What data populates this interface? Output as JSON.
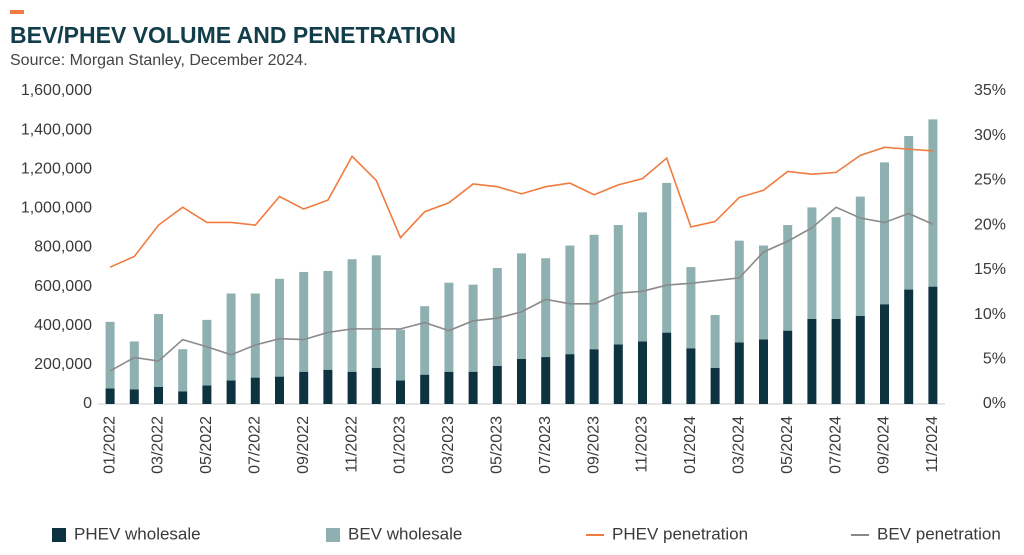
{
  "chart_data": {
    "type": "bar",
    "title": "BEV/PHEV VOLUME AND PENETRATION",
    "subtitle": "Source: Morgan Stanley, December 2024.",
    "categories": [
      "01/2022",
      null,
      "03/2022",
      null,
      "05/2022",
      null,
      "07/2022",
      null,
      "09/2022",
      null,
      "11/2022",
      null,
      "01/2023",
      null,
      "03/2023",
      null,
      "05/2023",
      null,
      "07/2023",
      null,
      "09/2023",
      null,
      "11/2023",
      null,
      "01/2024",
      null,
      "03/2024",
      null,
      "05/2024",
      null,
      "07/2024",
      null,
      "09/2024",
      null,
      "11/2024"
    ],
    "series": [
      {
        "name": "PHEV wholesale",
        "color": "#0d3340",
        "values": [
          80000,
          75000,
          88000,
          65000,
          95000,
          120000,
          135000,
          140000,
          165000,
          175000,
          165000,
          185000,
          120000,
          150000,
          165000,
          165000,
          195000,
          230000,
          240000,
          255000,
          280000,
          305000,
          320000,
          365000,
          285000,
          185000,
          315000,
          330000,
          375000,
          435000,
          435000,
          450000,
          510000,
          585000,
          600000
        ]
      },
      {
        "name": "BEV wholesale",
        "color": "#8fb0b0",
        "values": [
          340000,
          245000,
          372000,
          215000,
          335000,
          445000,
          430000,
          500000,
          510000,
          505000,
          575000,
          575000,
          260000,
          350000,
          455000,
          445000,
          500000,
          540000,
          505000,
          555000,
          585000,
          610000,
          660000,
          765000,
          415000,
          270000,
          520000,
          480000,
          540000,
          570000,
          520000,
          610000,
          725000,
          785000,
          855000
        ]
      },
      {
        "name": "PHEV penetration",
        "color": "#f07b3f",
        "type": "line",
        "axis": "y2",
        "values": [
          15.3,
          16.5,
          20,
          22,
          20.3,
          20.3,
          20,
          23.2,
          21.8,
          22.8,
          27.7,
          25,
          18.6,
          21.5,
          22.5,
          24.6,
          24.3,
          23.5,
          24.3,
          24.7,
          23.4,
          24.5,
          25.2,
          27.5,
          19.8,
          20.4,
          23.1,
          23.9,
          26,
          25.7,
          25.9,
          27.8,
          28.7,
          28.5,
          28.3
        ]
      },
      {
        "name": "BEV penetration",
        "color": "#8a8a8a",
        "type": "line",
        "axis": "y2",
        "values": [
          3.7,
          5.2,
          4.8,
          7.2,
          6.4,
          5.5,
          6.6,
          7.3,
          7.2,
          8,
          8.4,
          8.4,
          8.4,
          9.1,
          8.2,
          9.3,
          9.6,
          10.3,
          11.7,
          11.2,
          11.2,
          12.4,
          12.6,
          13.3,
          13.5,
          13.8,
          14.1,
          17,
          18.2,
          19.7,
          22,
          20.8,
          20.3,
          21.3,
          20.1
        ]
      }
    ],
    "ylim": [
      0,
      1600000
    ],
    "yticks": [
      0,
      {
        "value": 200000,
        "label": "200,000"
      },
      {
        "value": 400000,
        "label": "400,000"
      },
      {
        "value": 600000,
        "label": "600,000"
      },
      {
        "value": 800000,
        "label": "800,000"
      },
      {
        "value": 1000000,
        "label": "1,000,000"
      },
      {
        "value": 1200000,
        "label": "1,200,000"
      },
      {
        "value": 1400000,
        "label": "1,400,000"
      },
      {
        "value": 1600000,
        "label": "1,600,000"
      }
    ],
    "y2lim": [
      0,
      35
    ],
    "y2ticks": [
      {
        "value": 0,
        "label": "0%"
      },
      {
        "value": 5,
        "label": "5%"
      },
      {
        "value": 10,
        "label": "10%"
      },
      {
        "value": 15,
        "label": "15%"
      },
      {
        "value": 20,
        "label": "20%"
      },
      {
        "value": 25,
        "label": "25%"
      },
      {
        "value": 30,
        "label": "30%"
      },
      {
        "value": 35,
        "label": "35%"
      }
    ],
    "legend": "bottom",
    "grid": false
  }
}
